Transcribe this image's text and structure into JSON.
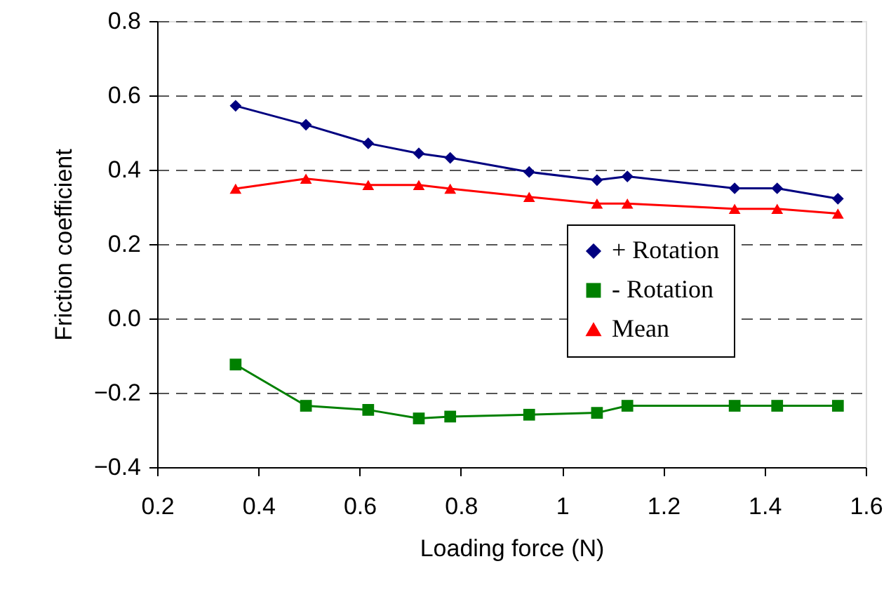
{
  "chart_data": {
    "type": "line",
    "xlabel": "Loading force (N)",
    "ylabel": "Friction coefficient",
    "x": [
      0.355,
      0.494,
      0.617,
      0.717,
      0.779,
      0.935,
      1.069,
      1.129,
      1.341,
      1.425,
      1.545
    ],
    "series": [
      {
        "name": "+ Rotation",
        "color": "#000080",
        "marker": "diamond",
        "values": [
          0.572,
          0.521,
          0.471,
          0.444,
          0.432,
          0.394,
          0.372,
          0.382,
          0.35,
          0.35,
          0.322
        ]
      },
      {
        "name": "- Rotation",
        "color": "#008000",
        "marker": "square",
        "values": [
          -0.124,
          -0.235,
          -0.246,
          -0.269,
          -0.264,
          -0.259,
          -0.254,
          -0.235,
          -0.235,
          -0.235,
          -0.235
        ]
      },
      {
        "name": "Mean",
        "color": "#ff0000",
        "marker": "triangle",
        "values": [
          0.349,
          0.376,
          0.359,
          0.359,
          0.349,
          0.327,
          0.309,
          0.309,
          0.295,
          0.295,
          0.282
        ]
      }
    ],
    "xlim": [
      0.2,
      1.6
    ],
    "xticks": [
      0.2,
      0.4,
      0.6,
      0.8,
      {
        "value": 1.0,
        "label": "1"
      },
      1.2,
      1.4,
      1.6
    ],
    "ylim": [
      -0.4,
      0.8
    ],
    "yticks": [
      -0.4,
      -0.2,
      {
        "value": 0.0,
        "label": "0.0"
      },
      0.2,
      0.4,
      0.6,
      0.8
    ],
    "grid": "y",
    "legend": "right",
    "line_style": "solid"
  }
}
